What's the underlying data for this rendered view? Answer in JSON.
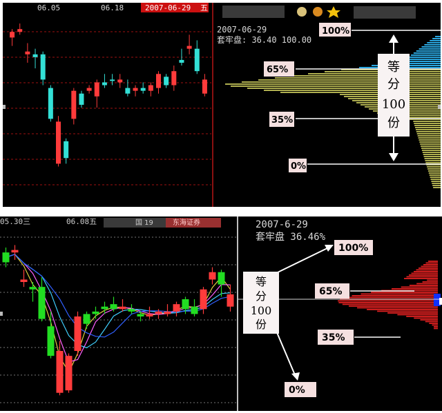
{
  "top": {
    "header": {
      "date1": "06.05",
      "date2": "06.18",
      "date_tag": "2007-06-29",
      "date_tag_suffix": "五"
    },
    "cost_date": "2007-06-29",
    "cost_line": "套牢盘: 36.40 100.00",
    "labels": {
      "p100": "100%",
      "p65": "65%",
      "p35": "35%",
      "p0": "0%"
    },
    "callout": {
      "line1": "等",
      "line2": "分",
      "line3": "100",
      "line4": "份"
    }
  },
  "bottom": {
    "header": {
      "date1": "05.30三",
      "date2": "06.08五",
      "tag": "国 19",
      "tag2": "东海证券"
    },
    "cost_date": "2007-6-29",
    "cost_line": "套牢盘 36.46%",
    "labels": {
      "p100": "100%",
      "p65": "65%",
      "p35": "35%",
      "p0": "0%"
    },
    "callout": {
      "line1": "等",
      "line2": "分",
      "line3": "100",
      "line4": "份"
    }
  },
  "colors": {
    "up": "#ff3b3b",
    "down": "#33e0d6",
    "down_green": "#22dd22",
    "grid": "#a01010",
    "chip_yellow": "#b0b050",
    "chip_blue": "#2aa7e0",
    "chip_red": "#e02020"
  },
  "chart_data": [
    {
      "type": "candlestick",
      "title": "",
      "candles": [
        {
          "o": 6.4,
          "h": 6.7,
          "l": 6.1,
          "c": 6.6,
          "dir": "up"
        },
        {
          "o": 6.6,
          "h": 6.9,
          "l": 6.5,
          "c": 6.7,
          "dir": "up"
        },
        {
          "o": 5.9,
          "h": 6.2,
          "l": 5.5,
          "c": 5.8,
          "dir": "up"
        },
        {
          "o": 5.7,
          "h": 6.0,
          "l": 5.3,
          "c": 5.8,
          "dir": "down"
        },
        {
          "o": 5.8,
          "h": 5.9,
          "l": 4.7,
          "c": 4.9,
          "dir": "down"
        },
        {
          "o": 4.6,
          "h": 4.7,
          "l": 3.4,
          "c": 3.5,
          "dir": "down"
        },
        {
          "o": 3.4,
          "h": 3.6,
          "l": 1.8,
          "c": 1.9,
          "dir": "up"
        },
        {
          "o": 2.1,
          "h": 2.8,
          "l": 1.9,
          "c": 2.7,
          "dir": "down"
        },
        {
          "o": 3.5,
          "h": 4.6,
          "l": 3.3,
          "c": 4.5,
          "dir": "up"
        },
        {
          "o": 4.4,
          "h": 4.5,
          "l": 3.9,
          "c": 4.0,
          "dir": "down"
        },
        {
          "o": 4.6,
          "h": 4.7,
          "l": 4.4,
          "c": 4.5,
          "dir": "up"
        },
        {
          "o": 4.3,
          "h": 4.9,
          "l": 3.9,
          "c": 4.8,
          "dir": "up"
        },
        {
          "o": 4.8,
          "h": 5.1,
          "l": 4.6,
          "c": 4.7,
          "dir": "down"
        },
        {
          "o": 4.9,
          "h": 5.1,
          "l": 4.7,
          "c": 4.9,
          "dir": "down"
        },
        {
          "o": 4.9,
          "h": 5.1,
          "l": 4.6,
          "c": 4.8,
          "dir": "up"
        },
        {
          "o": 4.6,
          "h": 4.9,
          "l": 4.3,
          "c": 4.4,
          "dir": "down"
        },
        {
          "o": 4.5,
          "h": 4.7,
          "l": 4.3,
          "c": 4.6,
          "dir": "up"
        },
        {
          "o": 4.6,
          "h": 4.8,
          "l": 4.4,
          "c": 4.5,
          "dir": "down"
        },
        {
          "o": 4.5,
          "h": 4.8,
          "l": 4.3,
          "c": 4.7,
          "dir": "up"
        },
        {
          "o": 4.6,
          "h": 5.2,
          "l": 4.4,
          "c": 5.1,
          "dir": "up"
        },
        {
          "o": 5.0,
          "h": 5.1,
          "l": 4.6,
          "c": 4.7,
          "dir": "down"
        },
        {
          "o": 4.7,
          "h": 5.4,
          "l": 4.5,
          "c": 5.2,
          "dir": "up"
        },
        {
          "o": 5.6,
          "h": 6.0,
          "l": 5.4,
          "c": 5.5,
          "dir": "down"
        },
        {
          "o": 6.1,
          "h": 6.5,
          "l": 5.8,
          "c": 6.0,
          "dir": "up"
        },
        {
          "o": 6.0,
          "h": 6.3,
          "l": 5.1,
          "c": 5.2,
          "dir": "down"
        },
        {
          "o": 4.9,
          "h": 5.1,
          "l": 4.3,
          "c": 4.4,
          "dir": "up"
        }
      ],
      "ylim": [
        1,
        7
      ],
      "grid": true
    },
    {
      "type": "candlestick",
      "title": "",
      "candles": [
        {
          "o": 6.2,
          "h": 6.8,
          "l": 6.0,
          "c": 6.6,
          "dir": "down"
        },
        {
          "o": 6.6,
          "h": 6.9,
          "l": 6.3,
          "c": 6.7,
          "dir": "up"
        },
        {
          "o": 5.5,
          "h": 5.9,
          "l": 5.2,
          "c": 5.4,
          "dir": "up"
        },
        {
          "o": 5.1,
          "h": 5.4,
          "l": 4.6,
          "c": 5.2,
          "dir": "down"
        },
        {
          "o": 5.2,
          "h": 5.6,
          "l": 3.8,
          "c": 3.9,
          "dir": "down"
        },
        {
          "o": 3.6,
          "h": 4.2,
          "l": 2.3,
          "c": 2.4,
          "dir": "down"
        },
        {
          "o": 2.6,
          "h": 3.0,
          "l": 0.8,
          "c": 0.9,
          "dir": "up"
        },
        {
          "o": 1.0,
          "h": 2.5,
          "l": 0.9,
          "c": 2.4,
          "dir": "up"
        },
        {
          "o": 2.6,
          "h": 4.2,
          "l": 2.4,
          "c": 4.0,
          "dir": "up"
        },
        {
          "o": 3.7,
          "h": 4.2,
          "l": 3.5,
          "c": 4.1,
          "dir": "down"
        },
        {
          "o": 4.1,
          "h": 4.4,
          "l": 3.9,
          "c": 4.2,
          "dir": "down"
        },
        {
          "o": 4.3,
          "h": 4.6,
          "l": 4.1,
          "c": 4.4,
          "dir": "down"
        },
        {
          "o": 4.3,
          "h": 4.8,
          "l": 4.2,
          "c": 4.5,
          "dir": "down"
        },
        {
          "o": 4.4,
          "h": 4.7,
          "l": 4.2,
          "c": 4.3,
          "dir": "up"
        },
        {
          "o": 4.3,
          "h": 4.5,
          "l": 4.1,
          "c": 4.2,
          "dir": "down"
        },
        {
          "o": 4.0,
          "h": 4.2,
          "l": 3.8,
          "c": 4.1,
          "dir": "down"
        },
        {
          "o": 4.1,
          "h": 4.4,
          "l": 3.9,
          "c": 4.0,
          "dir": "up"
        },
        {
          "o": 4.1,
          "h": 4.3,
          "l": 3.9,
          "c": 4.2,
          "dir": "up"
        },
        {
          "o": 4.2,
          "h": 4.5,
          "l": 4.0,
          "c": 4.1,
          "dir": "up"
        },
        {
          "o": 4.2,
          "h": 4.6,
          "l": 4.0,
          "c": 4.5,
          "dir": "up"
        },
        {
          "o": 4.3,
          "h": 4.8,
          "l": 4.1,
          "c": 4.7,
          "dir": "down"
        },
        {
          "o": 4.4,
          "h": 4.7,
          "l": 4.0,
          "c": 4.1,
          "dir": "down"
        },
        {
          "o": 4.3,
          "h": 5.2,
          "l": 4.1,
          "c": 5.1,
          "dir": "up"
        },
        {
          "o": 5.5,
          "h": 6.0,
          "l": 5.3,
          "c": 5.8,
          "dir": "up"
        },
        {
          "o": 5.3,
          "h": 5.9,
          "l": 4.8,
          "c": 5.8,
          "dir": "down"
        },
        {
          "o": 4.9,
          "h": 5.3,
          "l": 4.2,
          "c": 4.4,
          "dir": "up"
        }
      ],
      "ylim": [
        0.5,
        7.5
      ],
      "grid": true
    }
  ]
}
